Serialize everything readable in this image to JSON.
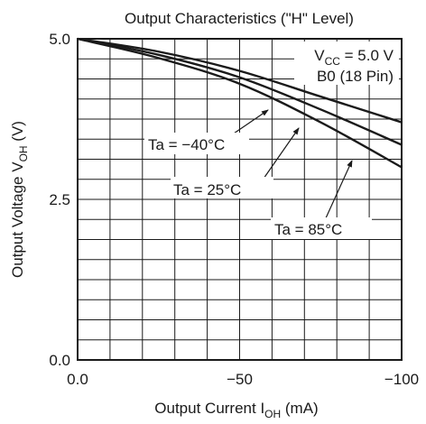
{
  "chart_data": {
    "type": "line",
    "title": "Output Characteristics  (\"H\" Level)",
    "xlabel": {
      "main": "Output Current  I",
      "sub": "OH",
      "unit": "  (mA)"
    },
    "ylabel": {
      "main": "Output Voltage  V",
      "sub": "OH",
      "unit": "  (V)"
    },
    "xlim": [
      0,
      -100
    ],
    "ylim": [
      0,
      5.0
    ],
    "x_ticks": [
      "0.0",
      "−50",
      "−100"
    ],
    "y_ticks": [
      "0.0",
      "2.5",
      "5.0"
    ],
    "grid": true,
    "conditions": {
      "line1_main": "V",
      "line1_sub": "CC",
      "line1_rest": " = 5.0 V",
      "line2": "B0 (18 Pin)"
    },
    "series": [
      {
        "name": "Ta = −40°C",
        "x": [
          0,
          -25,
          -50,
          -75,
          -100
        ],
        "y": [
          5.0,
          4.8,
          4.5,
          4.1,
          3.7
        ]
      },
      {
        "name": "Ta = 25°C",
        "x": [
          0,
          -25,
          -50,
          -75,
          -100
        ],
        "y": [
          5.0,
          4.75,
          4.4,
          3.9,
          3.35
        ]
      },
      {
        "name": "Ta = 85°C",
        "x": [
          0,
          -25,
          -50,
          -75,
          -100
        ],
        "y": [
          5.0,
          4.7,
          4.3,
          3.7,
          3.0
        ]
      }
    ]
  }
}
